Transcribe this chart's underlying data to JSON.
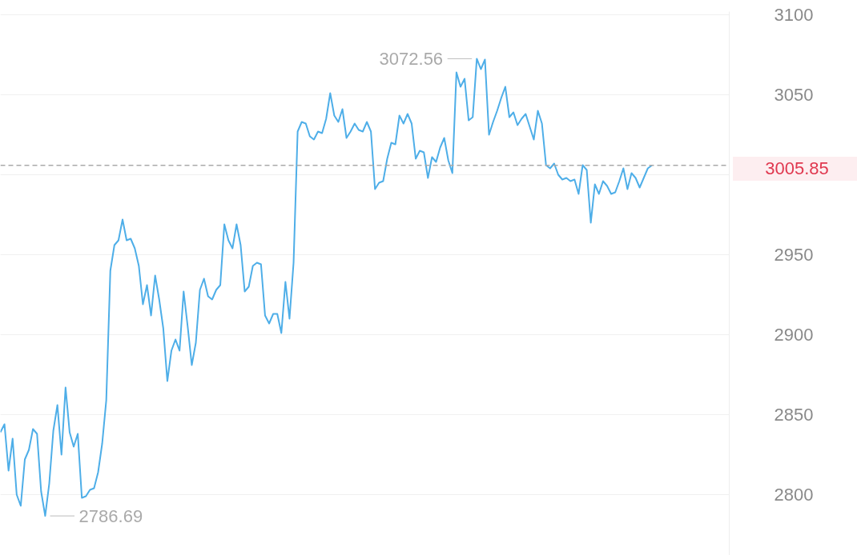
{
  "chart_data": {
    "type": "line",
    "categories": [
      null,
      null,
      null,
      null,
      null,
      null,
      null,
      null,
      null,
      null,
      null,
      null,
      null,
      null,
      null,
      null,
      null,
      null,
      null,
      null,
      null,
      null,
      null,
      null,
      null,
      null,
      null,
      null,
      null,
      null,
      null,
      null,
      null,
      null,
      null,
      null,
      null,
      null,
      null,
      null,
      null,
      null,
      null,
      null,
      null,
      null,
      null,
      null,
      null,
      null,
      null,
      null,
      null,
      null,
      null,
      null,
      null,
      null,
      null,
      null,
      null,
      null,
      null,
      null,
      null,
      null,
      null,
      null,
      null,
      null,
      null,
      null,
      null,
      null,
      null,
      null,
      null,
      null,
      null,
      null,
      null,
      null,
      null,
      null,
      null,
      null,
      null,
      null,
      null,
      null,
      null,
      null,
      null,
      null,
      null,
      null,
      null,
      null,
      null,
      null,
      null,
      null,
      null,
      null,
      null,
      null,
      null,
      null,
      null,
      null,
      null,
      null,
      null,
      null,
      null,
      null,
      null,
      null,
      null,
      null,
      null,
      null,
      null,
      null,
      null,
      null,
      null,
      null,
      null,
      null,
      null,
      null,
      null,
      null,
      null,
      null,
      null,
      null,
      null,
      null,
      null,
      null,
      null,
      null,
      null,
      null,
      null,
      null,
      null,
      null,
      null,
      null,
      null,
      null,
      null,
      null,
      null,
      null,
      null,
      null,
      null,
      null,
      null,
      null,
      null,
      null,
      null,
      null,
      null,
      null,
      null,
      null,
      null,
      null,
      null,
      null,
      null,
      null,
      null,
      null
    ],
    "series": [
      {
        "color": "#4eaee8",
        "values": [
          2839,
          2844,
          2815,
          2835,
          2800,
          2793,
          2822,
          2828,
          2841,
          2838,
          2802,
          2786.69,
          2807,
          2840,
          2856,
          2825,
          2867,
          2839,
          2830,
          2838,
          2798,
          2799,
          2803,
          2804,
          2814,
          2832,
          2859,
          2940,
          2956,
          2959,
          2972,
          2959,
          2960,
          2954,
          2943,
          2919,
          2931,
          2912,
          2937,
          2922,
          2904,
          2871,
          2890,
          2897,
          2890,
          2927,
          2905,
          2881,
          2895,
          2928,
          2935,
          2924,
          2922,
          2928,
          2931,
          2969,
          2959,
          2954,
          2969,
          2956,
          2927,
          2930,
          2943,
          2945,
          2944,
          2912,
          2907,
          2913,
          2913,
          2901,
          2933,
          2910,
          2945,
          3027,
          3033,
          3032,
          3024,
          3022,
          3027,
          3026,
          3035,
          3051,
          3037,
          3033,
          3041,
          3023,
          3027,
          3032,
          3028,
          3027,
          3033,
          3027,
          2991,
          2995,
          2996,
          3010,
          3020,
          3019,
          3037,
          3032,
          3038,
          3032,
          3010,
          3015,
          3014,
          2998,
          3011,
          3008,
          3017,
          3023,
          3009,
          3001,
          3064,
          3055,
          3060,
          3034,
          3036,
          3072.56,
          3066,
          3072,
          3025,
          3033,
          3040,
          3048,
          3055,
          3036,
          3039,
          3031,
          3035,
          3038,
          3030,
          3022,
          3040,
          3032,
          3006,
          3004,
          3007,
          3000,
          2997,
          2998,
          2996,
          2997,
          2988,
          3006,
          3003,
          2970,
          2994,
          2988,
          2996,
          2993,
          2988,
          2989,
          2996,
          3004,
          2991,
          3001,
          2998,
          2992,
          2998,
          3004,
          3005.85,
          null,
          null,
          null,
          null,
          null,
          null,
          null,
          null,
          null,
          null,
          null,
          null,
          null,
          null,
          null,
          null,
          null,
          null,
          null
        ]
      }
    ],
    "ylim": [
      2762,
      3102
    ],
    "yticks": [
      2800,
      2850,
      2900,
      2950,
      {
        "value": 3000,
        "label": null
      },
      3100,
      3050
    ],
    "tick_labels": "y",
    "grid": "y",
    "line_style": "solid",
    "ref_lines": [
      {
        "axis": "y",
        "value": 3005.85,
        "label": "3005.85",
        "color": "#aaaaaa",
        "line_style": "dashed"
      }
    ],
    "annotations": [
      "3072.56",
      "2786.69"
    ]
  }
}
